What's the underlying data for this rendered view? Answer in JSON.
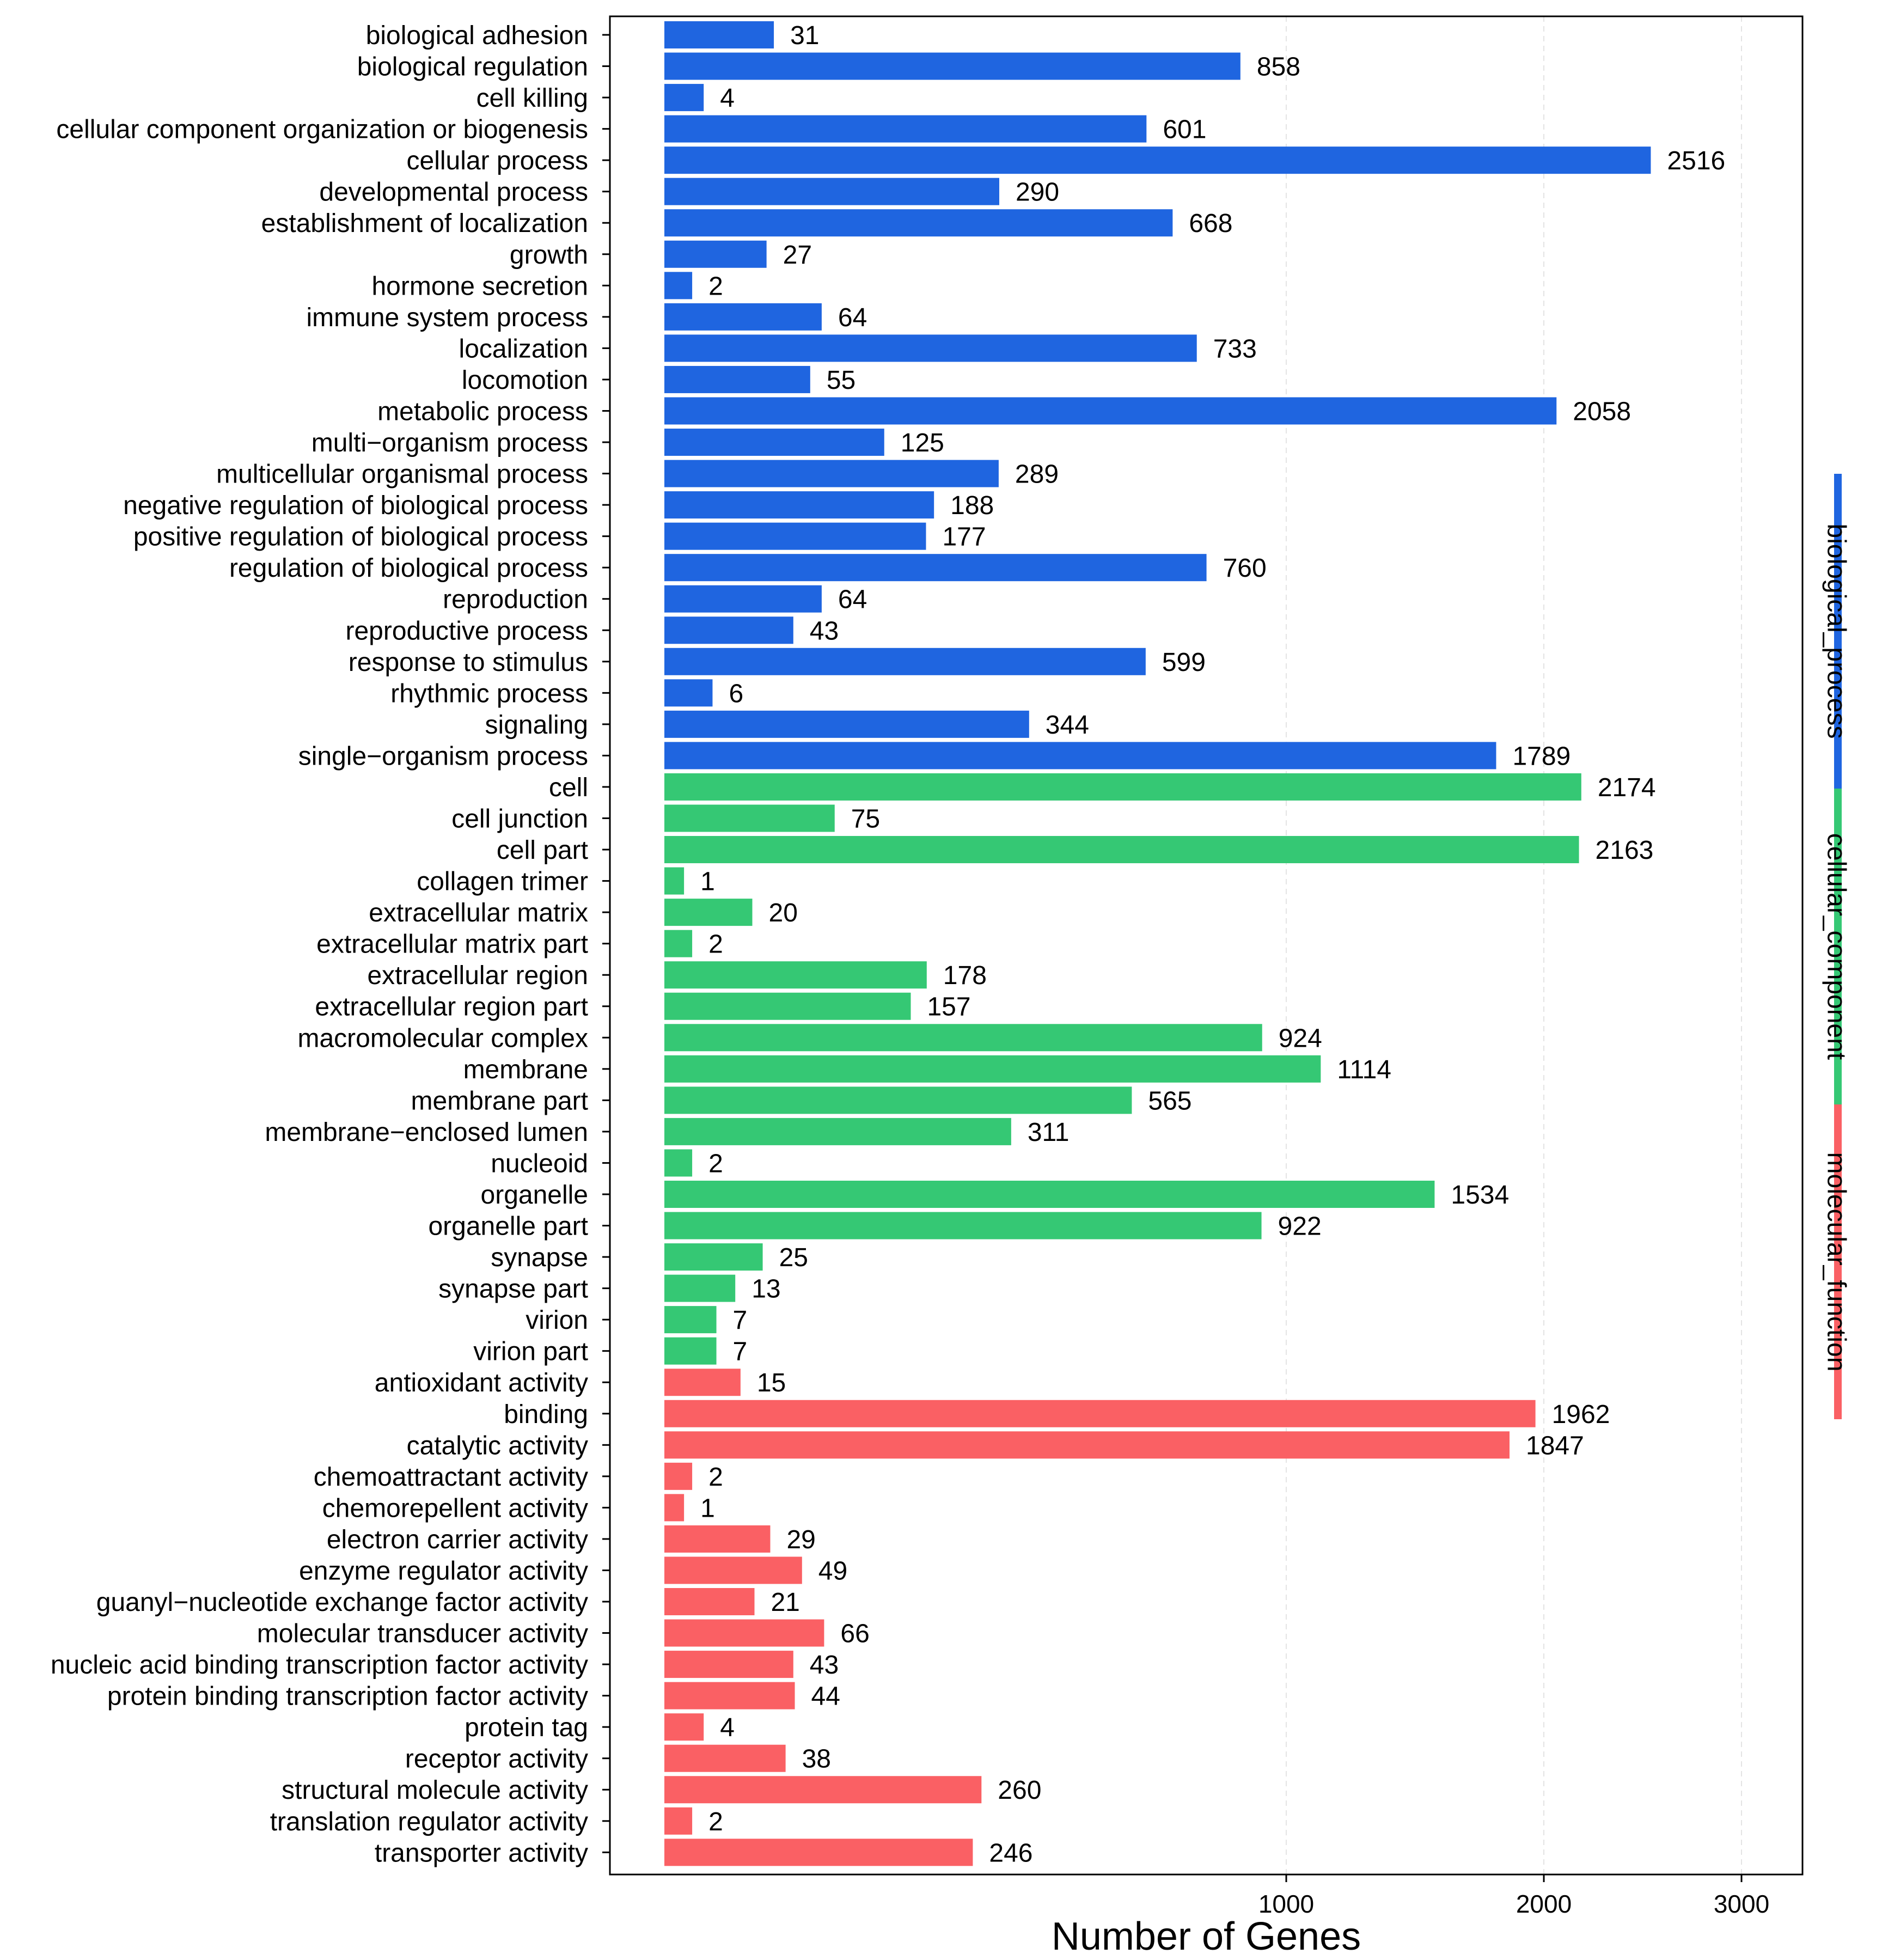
{
  "chart_data": {
    "type": "bar",
    "orientation": "horizontal",
    "xlabel": "Number of Genes",
    "x_scale": "sqrt",
    "xlim": [
      0,
      3300
    ],
    "x_ticks": [
      1000,
      2000,
      3000
    ],
    "x_tick_labels": [
      "1000",
      "2000",
      "3000"
    ],
    "grid": true,
    "categories": [
      "biological adhesion",
      "biological regulation",
      "cell killing",
      "cellular component organization or biogenesis",
      "cellular process",
      "developmental process",
      "establishment of localization",
      "growth",
      "hormone secretion",
      "immune system process",
      "localization",
      "locomotion",
      "metabolic process",
      "multi−organism process",
      "multicellular organismal process",
      "negative regulation of biological process",
      "positive regulation of biological process",
      "regulation of biological process",
      "reproduction",
      "reproductive process",
      "response to stimulus",
      "rhythmic process",
      "signaling",
      "single−organism process",
      "cell",
      "cell junction",
      "cell part",
      "collagen trimer",
      "extracellular matrix",
      "extracellular matrix part",
      "extracellular region",
      "extracellular region part",
      "macromolecular complex",
      "membrane",
      "membrane part",
      "membrane−enclosed lumen",
      "nucleoid",
      "organelle",
      "organelle part",
      "synapse",
      "synapse part",
      "virion",
      "virion part",
      "antioxidant activity",
      "binding",
      "catalytic activity",
      "chemoattractant activity",
      "chemorepellent activity",
      "electron carrier activity",
      "enzyme regulator activity",
      "guanyl−nucleotide exchange factor activity",
      "molecular transducer activity",
      "nucleic acid binding transcription factor activity",
      "protein binding transcription factor activity",
      "protein tag",
      "receptor activity",
      "structural molecule activity",
      "translation regulator activity",
      "transporter activity"
    ],
    "values": [
      31,
      858,
      4,
      601,
      2516,
      290,
      668,
      27,
      2,
      64,
      733,
      55,
      2058,
      125,
      289,
      188,
      177,
      760,
      64,
      43,
      599,
      6,
      344,
      1789,
      2174,
      75,
      2163,
      1,
      20,
      2,
      178,
      157,
      924,
      1114,
      565,
      311,
      2,
      1534,
      922,
      25,
      13,
      7,
      7,
      15,
      1962,
      1847,
      2,
      1,
      29,
      49,
      21,
      66,
      43,
      44,
      4,
      38,
      260,
      2,
      246
    ],
    "groups": [
      {
        "name": "biological_process",
        "start": 0,
        "count": 24,
        "color": "#1f65e0"
      },
      {
        "name": "cellular_component",
        "start": 24,
        "count": 19,
        "color": "#35c874"
      },
      {
        "name": "molecular_function",
        "start": 43,
        "count": 16,
        "color": "#fa6064"
      }
    ]
  }
}
